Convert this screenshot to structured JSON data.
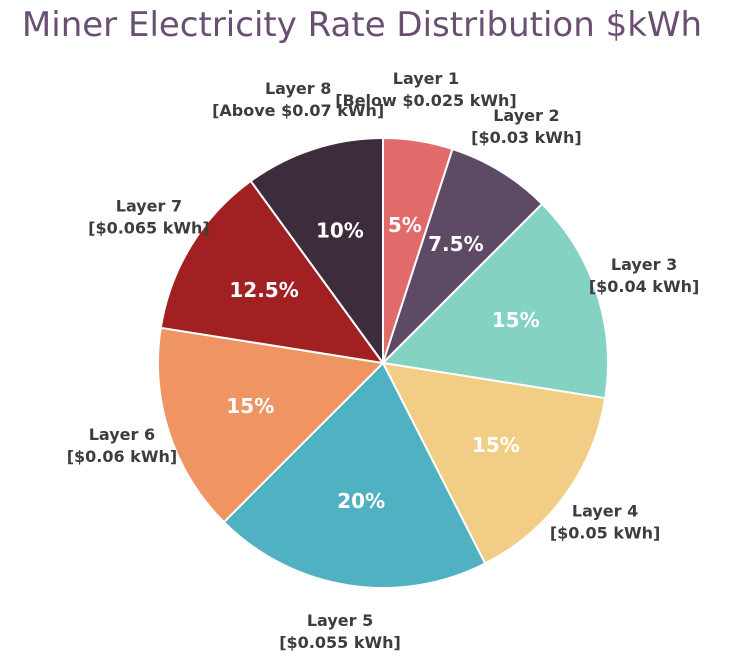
{
  "chart_data": {
    "type": "pie",
    "title": "Miner Electricity Rate Distribution $kWh",
    "start_angle_deg": 0,
    "direction": "clockwise",
    "slices": [
      {
        "name": "Layer 1",
        "sub": "[Below $0.025 kWh]",
        "value": 5,
        "value_label": "5%",
        "color": "#e16a6a"
      },
      {
        "name": "Layer 2",
        "sub": "[$0.03 kWh]",
        "value": 7.5,
        "value_label": "7.5%",
        "color": "#5f4a66"
      },
      {
        "name": "Layer 3",
        "sub": "[$0.04 kWh]",
        "value": 15,
        "value_label": "15%",
        "color": "#84d2c1"
      },
      {
        "name": "Layer 4",
        "sub": "[$0.05 kWh]",
        "value": 15,
        "value_label": "15%",
        "color": "#f2cd85"
      },
      {
        "name": "Layer 5",
        "sub": "[$0.055 kWh]",
        "value": 20,
        "value_label": "20%",
        "color": "#50b1c3"
      },
      {
        "name": "Layer 6",
        "sub": "[$0.06 kWh]",
        "value": 15,
        "value_label": "15%",
        "color": "#ee9563"
      },
      {
        "name": "Layer 7",
        "sub": "[$0.065 kWh]",
        "value": 12.5,
        "value_label": "12.5%",
        "color": "#a12122"
      },
      {
        "name": "Layer 8",
        "sub": "[Above $0.07 kWh]",
        "value": 10,
        "value_label": "10%",
        "color": "#3d2c3c"
      }
    ]
  }
}
